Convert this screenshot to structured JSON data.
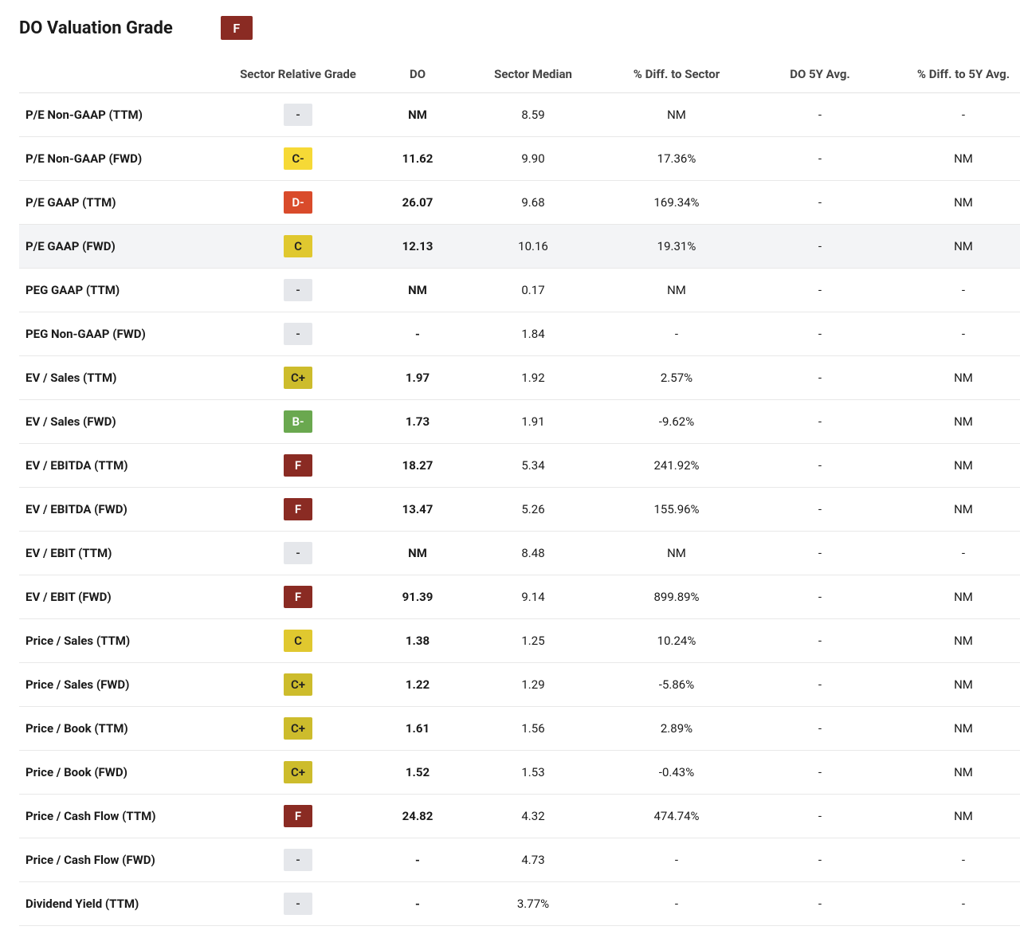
{
  "title": "DO Valuation Grade",
  "overall_grade": "F",
  "grade_styles": {
    "F": {
      "bg": "#8a2b23",
      "fg": "#ffffff"
    },
    "D-": {
      "bg": "#d94b2b",
      "fg": "#ffffff"
    },
    "C-": {
      "bg": "#f6d936",
      "fg": "#222222"
    },
    "C": {
      "bg": "#e0c82f",
      "fg": "#222222"
    },
    "C+": {
      "bg": "#cdbc2c",
      "fg": "#222222"
    },
    "B-": {
      "bg": "#6aa84f",
      "fg": "#ffffff"
    },
    "-": {
      "bg": "#e5e7eb",
      "fg": "#333333"
    }
  },
  "columns": [
    "",
    "Sector Relative Grade",
    "DO",
    "Sector Median",
    "% Diff. to Sector",
    "DO 5Y Avg.",
    "% Diff. to 5Y Avg."
  ],
  "rows": [
    {
      "metric": "P/E Non-GAAP (TTM)",
      "grade": "-",
      "do": "NM",
      "median": "8.59",
      "diff": "NM",
      "avg5y": "-",
      "diff5y": "-"
    },
    {
      "metric": "P/E Non-GAAP (FWD)",
      "grade": "C-",
      "do": "11.62",
      "median": "9.90",
      "diff": "17.36%",
      "avg5y": "-",
      "diff5y": "NM"
    },
    {
      "metric": "P/E GAAP (TTM)",
      "grade": "D-",
      "do": "26.07",
      "median": "9.68",
      "diff": "169.34%",
      "avg5y": "-",
      "diff5y": "NM"
    },
    {
      "metric": "P/E GAAP (FWD)",
      "grade": "C",
      "do": "12.13",
      "median": "10.16",
      "diff": "19.31%",
      "avg5y": "-",
      "diff5y": "NM",
      "highlight": true
    },
    {
      "metric": "PEG GAAP (TTM)",
      "grade": "-",
      "do": "NM",
      "median": "0.17",
      "diff": "NM",
      "avg5y": "-",
      "diff5y": "-"
    },
    {
      "metric": "PEG Non-GAAP (FWD)",
      "grade": "-",
      "do": "-",
      "median": "1.84",
      "diff": "-",
      "avg5y": "-",
      "diff5y": "-"
    },
    {
      "metric": "EV / Sales (TTM)",
      "grade": "C+",
      "do": "1.97",
      "median": "1.92",
      "diff": "2.57%",
      "avg5y": "-",
      "diff5y": "NM"
    },
    {
      "metric": "EV / Sales (FWD)",
      "grade": "B-",
      "do": "1.73",
      "median": "1.91",
      "diff": "-9.62%",
      "avg5y": "-",
      "diff5y": "NM"
    },
    {
      "metric": "EV / EBITDA (TTM)",
      "grade": "F",
      "do": "18.27",
      "median": "5.34",
      "diff": "241.92%",
      "avg5y": "-",
      "diff5y": "NM"
    },
    {
      "metric": "EV / EBITDA (FWD)",
      "grade": "F",
      "do": "13.47",
      "median": "5.26",
      "diff": "155.96%",
      "avg5y": "-",
      "diff5y": "NM"
    },
    {
      "metric": "EV / EBIT (TTM)",
      "grade": "-",
      "do": "NM",
      "median": "8.48",
      "diff": "NM",
      "avg5y": "-",
      "diff5y": "-"
    },
    {
      "metric": "EV / EBIT (FWD)",
      "grade": "F",
      "do": "91.39",
      "median": "9.14",
      "diff": "899.89%",
      "avg5y": "-",
      "diff5y": "NM"
    },
    {
      "metric": "Price / Sales (TTM)",
      "grade": "C",
      "do": "1.38",
      "median": "1.25",
      "diff": "10.24%",
      "avg5y": "-",
      "diff5y": "NM"
    },
    {
      "metric": "Price / Sales (FWD)",
      "grade": "C+",
      "do": "1.22",
      "median": "1.29",
      "diff": "-5.86%",
      "avg5y": "-",
      "diff5y": "NM"
    },
    {
      "metric": "Price / Book (TTM)",
      "grade": "C+",
      "do": "1.61",
      "median": "1.56",
      "diff": "2.89%",
      "avg5y": "-",
      "diff5y": "NM"
    },
    {
      "metric": "Price / Book (FWD)",
      "grade": "C+",
      "do": "1.52",
      "median": "1.53",
      "diff": "-0.43%",
      "avg5y": "-",
      "diff5y": "NM"
    },
    {
      "metric": "Price / Cash Flow (TTM)",
      "grade": "F",
      "do": "24.82",
      "median": "4.32",
      "diff": "474.74%",
      "avg5y": "-",
      "diff5y": "NM"
    },
    {
      "metric": "Price / Cash Flow (FWD)",
      "grade": "-",
      "do": "-",
      "median": "4.73",
      "diff": "-",
      "avg5y": "-",
      "diff5y": "-"
    },
    {
      "metric": "Dividend Yield (TTM)",
      "grade": "-",
      "do": "-",
      "median": "3.77%",
      "diff": "-",
      "avg5y": "-",
      "diff5y": "-"
    }
  ]
}
